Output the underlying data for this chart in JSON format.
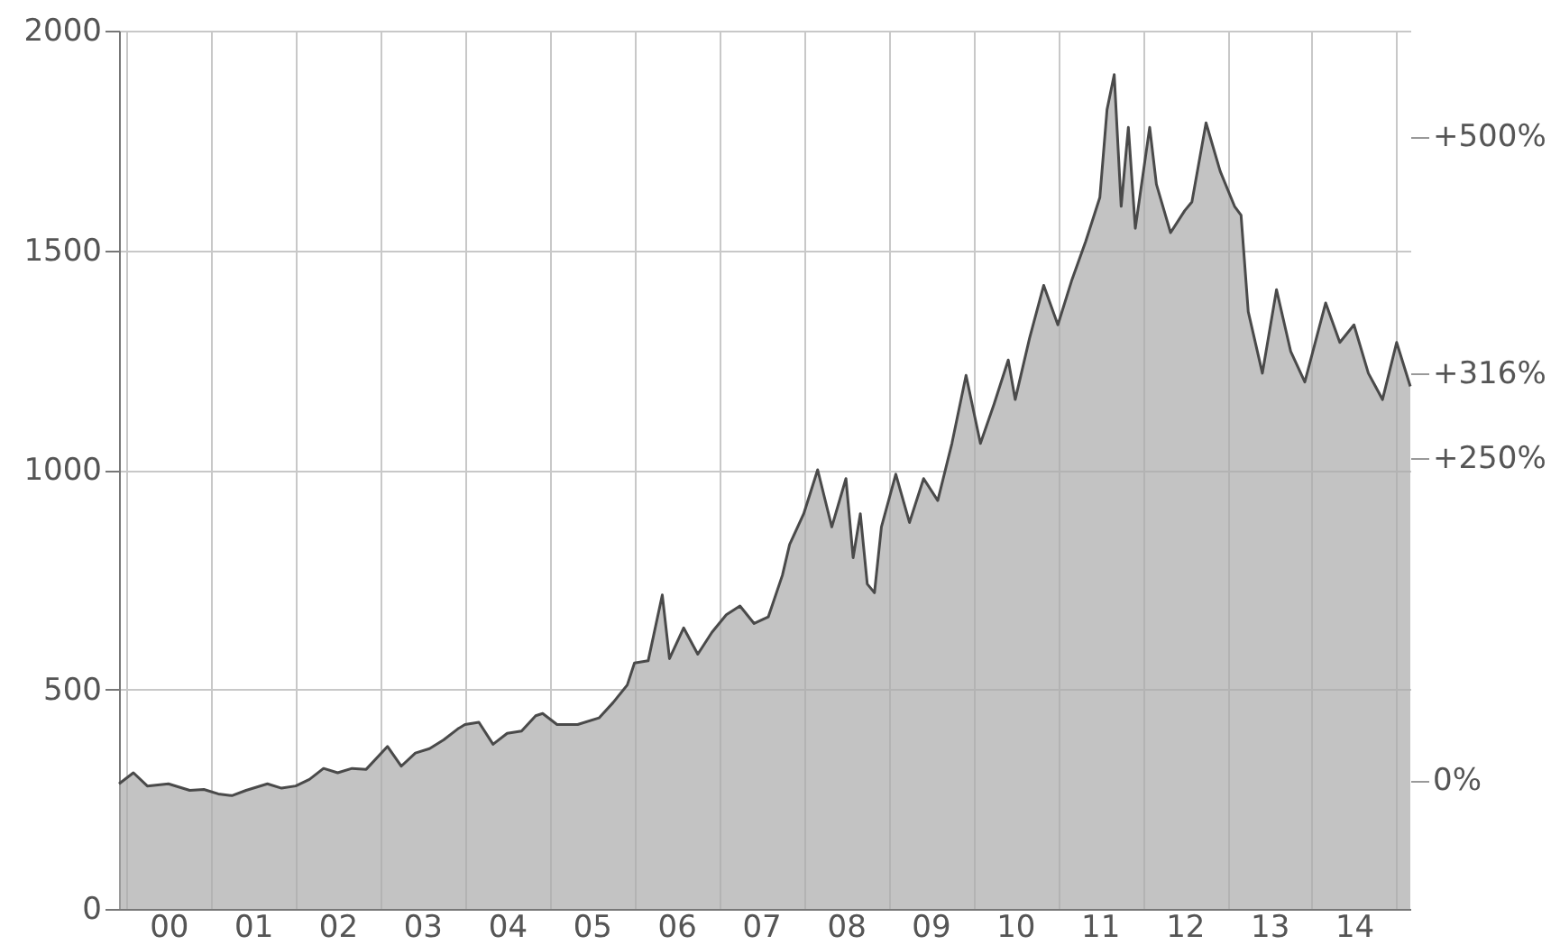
{
  "chart_data": {
    "type": "area",
    "x": [
      "1999-12",
      "2000-02",
      "2000-04",
      "2000-07",
      "2000-10",
      "2000-12",
      "2001-02",
      "2001-04",
      "2001-06",
      "2001-09",
      "2001-11",
      "2002-01",
      "2002-03",
      "2002-05",
      "2002-07",
      "2002-09",
      "2002-11",
      "2003-02",
      "2003-04",
      "2003-06",
      "2003-08",
      "2003-10",
      "2003-12",
      "2004-01",
      "2004-03",
      "2004-05",
      "2004-07",
      "2004-09",
      "2004-11",
      "2004-12",
      "2005-02",
      "2005-05",
      "2005-08",
      "2005-10",
      "2005-12",
      "2006-01",
      "2006-03",
      "2006-05",
      "2006-06",
      "2006-08",
      "2006-10",
      "2006-12",
      "2007-02",
      "2007-04",
      "2007-06",
      "2007-08",
      "2007-10",
      "2007-11",
      "2008-01",
      "2008-03",
      "2008-05",
      "2008-07",
      "2008-08",
      "2008-09",
      "2008-10",
      "2008-11",
      "2008-12",
      "2009-02",
      "2009-04",
      "2009-06",
      "2009-08",
      "2009-10",
      "2009-12",
      "2010-02",
      "2010-04",
      "2010-06",
      "2010-07",
      "2010-09",
      "2010-11",
      "2011-01",
      "2011-03",
      "2011-05",
      "2011-07",
      "2011-08",
      "2011-09",
      "2011-10",
      "2011-11",
      "2011-12",
      "2012-02",
      "2012-03",
      "2012-05",
      "2012-07",
      "2012-08",
      "2012-10",
      "2012-12",
      "2013-02",
      "2013-03",
      "2013-04",
      "2013-06",
      "2013-08",
      "2013-10",
      "2013-12",
      "2014-03",
      "2014-05",
      "2014-07",
      "2014-09",
      "2014-11",
      "2015-01",
      "2015-03"
    ],
    "series": [
      {
        "color": "#a9a9a9",
        "values": [
          285,
          310,
          280,
          285,
          270,
          272,
          262,
          258,
          270,
          285,
          275,
          280,
          295,
          320,
          310,
          320,
          318,
          370,
          325,
          355,
          365,
          385,
          410,
          420,
          425,
          375,
          400,
          405,
          440,
          445,
          420,
          420,
          435,
          470,
          510,
          560,
          565,
          715,
          570,
          640,
          580,
          630,
          670,
          690,
          650,
          665,
          760,
          830,
          900,
          1000,
          870,
          980,
          800,
          900,
          740,
          720,
          870,
          990,
          880,
          980,
          930,
          1060,
          1215,
          1060,
          1150,
          1250,
          1160,
          1300,
          1420,
          1330,
          1430,
          1520,
          1620,
          1820,
          1900,
          1600,
          1780,
          1550,
          1780,
          1650,
          1540,
          1590,
          1610,
          1790,
          1680,
          1600,
          1580,
          1360,
          1220,
          1410,
          1270,
          1200,
          1380,
          1290,
          1330,
          1220,
          1160,
          1290,
          1190
        ]
      }
    ],
    "xlim": [
      "1999-12",
      "2015-03"
    ],
    "xticks": [
      {
        "value": "2000-01",
        "label": null
      },
      {
        "value": "2000-07",
        "label": "00"
      },
      {
        "value": "2001-01",
        "label": null
      },
      {
        "value": "2001-07",
        "label": "01"
      },
      {
        "value": "2002-01",
        "label": null
      },
      {
        "value": "2002-07",
        "label": "02"
      },
      {
        "value": "2003-01",
        "label": null
      },
      {
        "value": "2003-07",
        "label": "03"
      },
      {
        "value": "2004-01",
        "label": null
      },
      {
        "value": "2004-07",
        "label": "04"
      },
      {
        "value": "2005-01",
        "label": null
      },
      {
        "value": "2005-07",
        "label": "05"
      },
      {
        "value": "2006-01",
        "label": null
      },
      {
        "value": "2006-07",
        "label": "06"
      },
      {
        "value": "2007-01",
        "label": null
      },
      {
        "value": "2007-07",
        "label": "07"
      },
      {
        "value": "2008-01",
        "label": null
      },
      {
        "value": "2008-07",
        "label": "08"
      },
      {
        "value": "2009-01",
        "label": null
      },
      {
        "value": "2009-07",
        "label": "09"
      },
      {
        "value": "2010-01",
        "label": null
      },
      {
        "value": "2010-07",
        "label": "10"
      },
      {
        "value": "2011-01",
        "label": null
      },
      {
        "value": "2011-07",
        "label": "11"
      },
      {
        "value": "2012-01",
        "label": null
      },
      {
        "value": "2012-07",
        "label": "12"
      },
      {
        "value": "2013-01",
        "label": null
      },
      {
        "value": "2013-07",
        "label": "13"
      },
      {
        "value": "2014-01",
        "label": null
      },
      {
        "value": "2014-07",
        "label": "14"
      },
      {
        "value": "2015-01",
        "label": null
      }
    ],
    "ylim": [
      0,
      2000
    ],
    "yticks": [
      0,
      500,
      1000,
      1500,
      2000
    ],
    "y2lim": [
      -100,
      582
    ],
    "y2ticks": [
      {
        "value": 0,
        "label": "0%"
      },
      {
        "value": 250,
        "label": "+250%"
      },
      {
        "value": 316,
        "label": "+316%"
      },
      {
        "value": 500,
        "label": "+500%"
      }
    ],
    "grid": true
  }
}
